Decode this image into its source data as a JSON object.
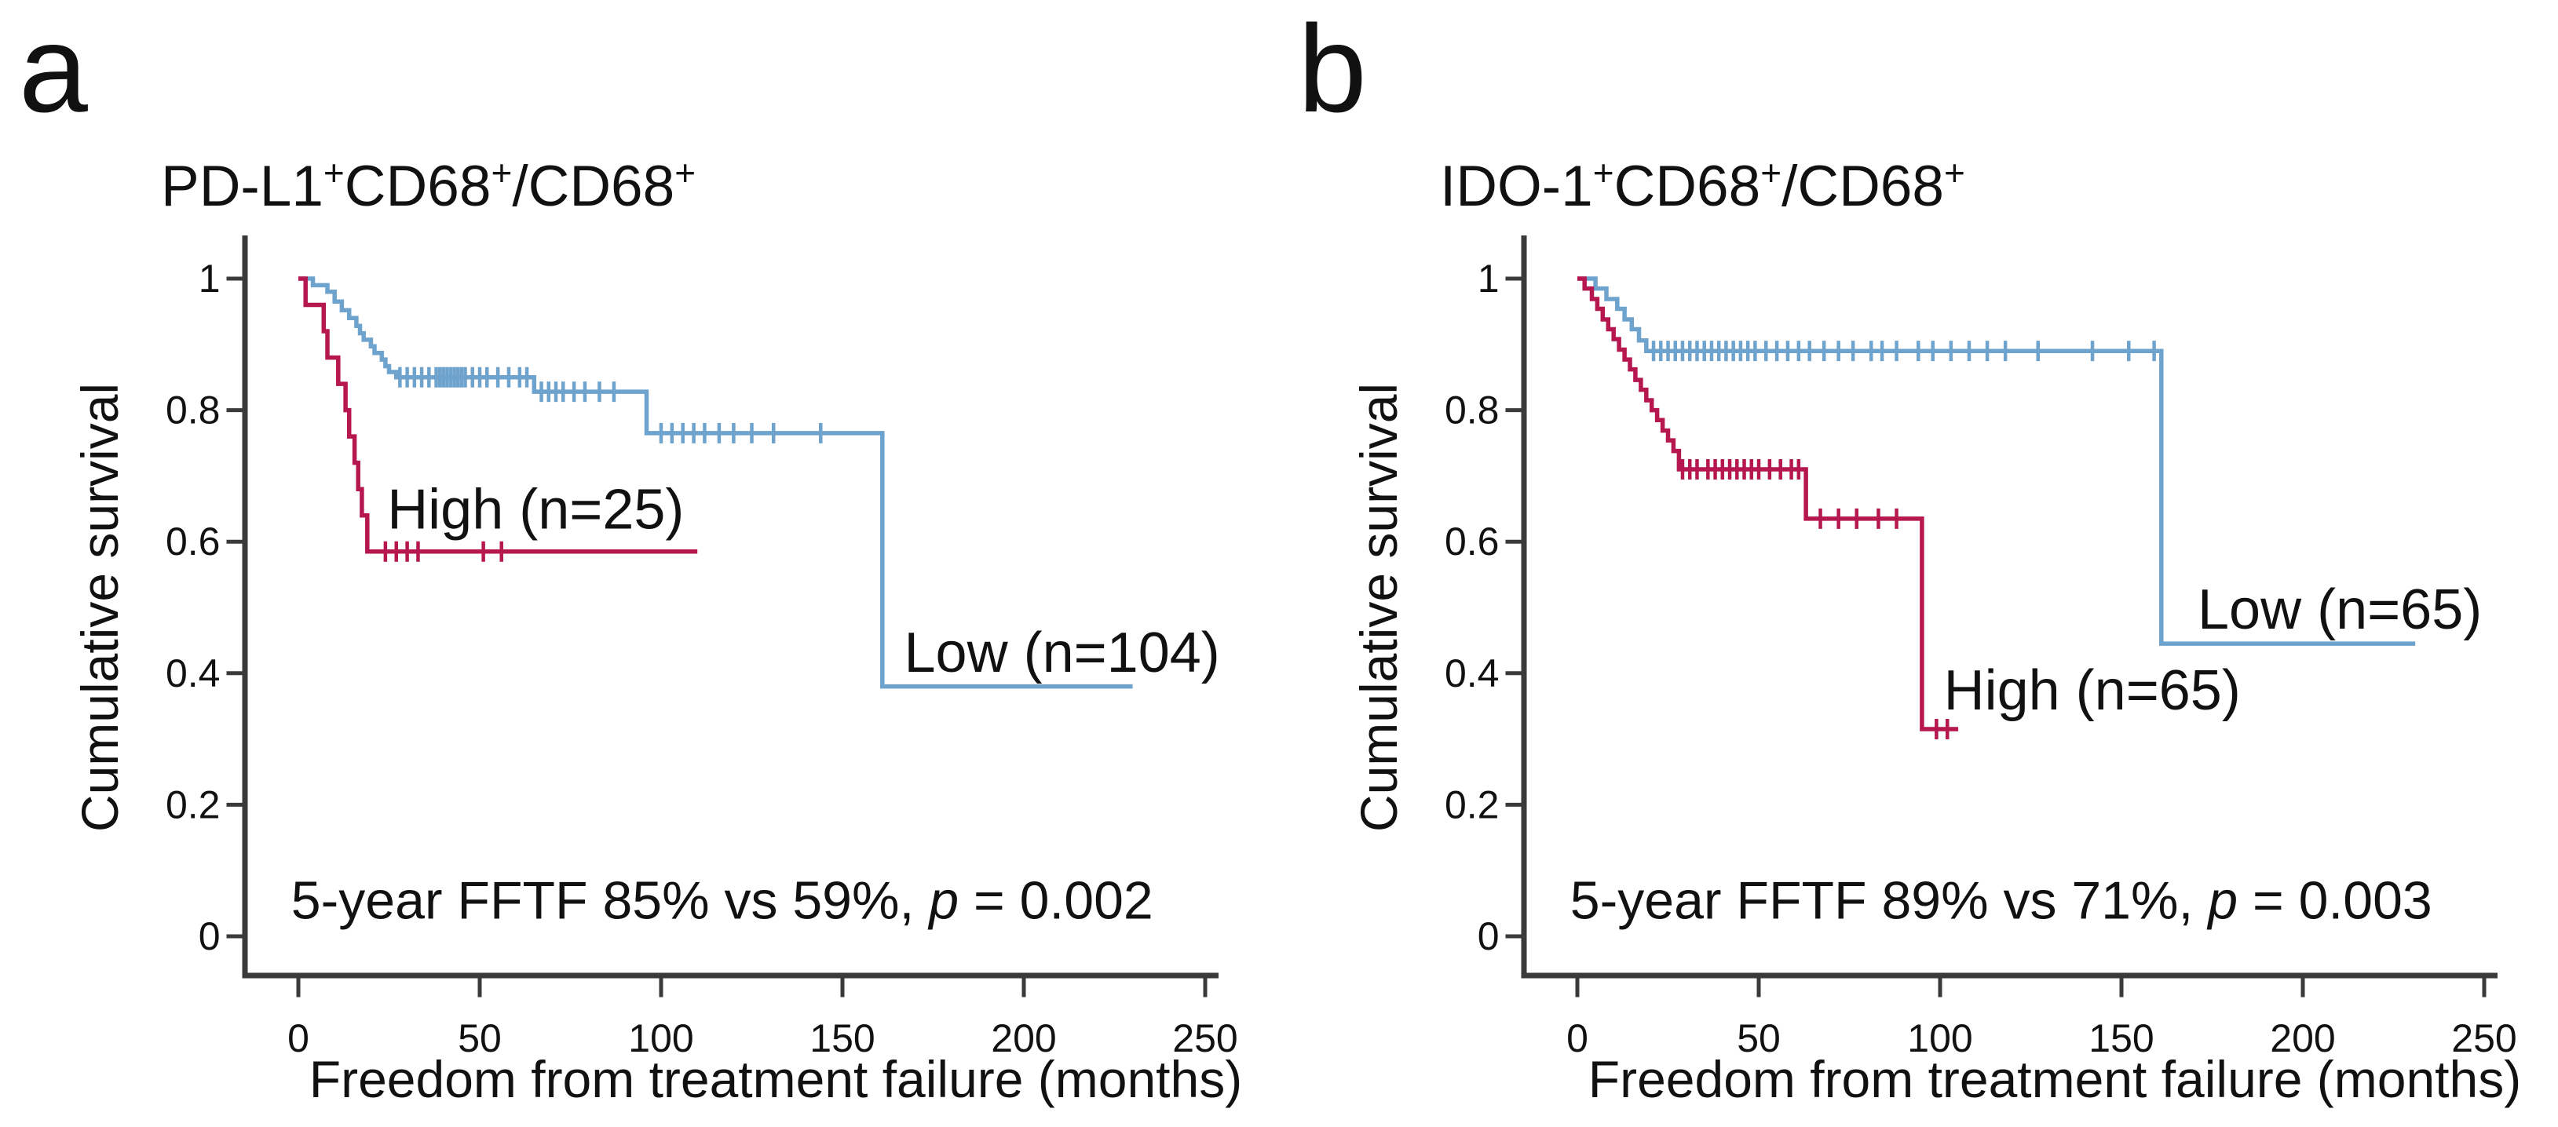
{
  "figure": {
    "background": "#ffffff",
    "panel_letters": [
      "a",
      "b"
    ]
  },
  "palette": {
    "low_blue": "#6ea3cd",
    "high_red": "#b5174e",
    "axis": "#3a3a3a",
    "text": "#111111"
  },
  "chart_data": [
    {
      "type": "line",
      "subtype": "kaplan_meier_step",
      "panel_letter": "a",
      "title": "PD-L1+CD68+/CD68+",
      "title_segments": [
        [
          "PD-L1",
          false
        ],
        [
          "+",
          true
        ],
        [
          "CD68",
          false
        ],
        [
          "+",
          true
        ],
        [
          "/CD68",
          false
        ],
        [
          "+",
          true
        ]
      ],
      "xlabel": "Freedom from treatment failure (months)",
      "ylabel": "Cumulative survival",
      "x_ticks": [
        0,
        50,
        100,
        150,
        200,
        250
      ],
      "y_ticks": [
        [
          "1",
          1.0
        ],
        [
          "0.8",
          0.8
        ],
        [
          "0.6",
          0.6
        ],
        [
          "0.4",
          0.4
        ],
        [
          "0.2",
          0.2
        ],
        [
          "0",
          0.0
        ]
      ],
      "xlim": [
        0,
        254
      ],
      "ylim": [
        0,
        1.05
      ],
      "grid": false,
      "legend_position": "inline-labels",
      "annotation": "5-year FFTF 85% vs 59%, p = 0.002",
      "annotation_segments": [
        [
          "5-year FFTF 85% vs 59%, ",
          "normal"
        ],
        [
          "p",
          "italic"
        ],
        [
          " = 0.002",
          "normal"
        ]
      ],
      "annotation_t": -2,
      "annotation_v": 0.027,
      "series": [
        {
          "id": "low",
          "name": "Low",
          "n": 104,
          "color_key": "low_blue",
          "label_text": "Low (n=104)",
          "label_t": 167,
          "label_v": 0.402,
          "points": [
            [
              0,
              1.0
            ],
            [
              4,
              0.99
            ],
            [
              8,
              0.98
            ],
            [
              10,
              0.965
            ],
            [
              12,
              0.952
            ],
            [
              14,
              0.94
            ],
            [
              16,
              0.928
            ],
            [
              17,
              0.917
            ],
            [
              18,
              0.907
            ],
            [
              20,
              0.897
            ],
            [
              21,
              0.887
            ],
            [
              23,
              0.877
            ],
            [
              24,
              0.867
            ],
            [
              25,
              0.858
            ],
            [
              27,
              0.85
            ],
            [
              65,
              0.828
            ],
            [
              96,
              0.765
            ],
            [
              161,
              0.38
            ]
          ],
          "end_t": 230,
          "censors": [
            [
              28,
              0.85
            ],
            [
              30,
              0.85
            ],
            [
              32,
              0.85
            ],
            [
              34,
              0.85
            ],
            [
              36,
              0.85
            ],
            [
              38,
              0.85
            ],
            [
              39,
              0.85
            ],
            [
              40,
              0.85
            ],
            [
              41,
              0.85
            ],
            [
              42,
              0.85
            ],
            [
              43,
              0.85
            ],
            [
              44,
              0.85
            ],
            [
              45,
              0.85
            ],
            [
              46,
              0.85
            ],
            [
              48,
              0.85
            ],
            [
              50,
              0.85
            ],
            [
              52,
              0.85
            ],
            [
              55,
              0.85
            ],
            [
              58,
              0.85
            ],
            [
              61,
              0.85
            ],
            [
              63,
              0.85
            ],
            [
              67,
              0.828
            ],
            [
              69,
              0.828
            ],
            [
              71,
              0.828
            ],
            [
              73,
              0.828
            ],
            [
              76,
              0.828
            ],
            [
              79,
              0.828
            ],
            [
              83,
              0.828
            ],
            [
              87,
              0.828
            ],
            [
              100,
              0.765
            ],
            [
              103,
              0.765
            ],
            [
              106,
              0.765
            ],
            [
              109,
              0.765
            ],
            [
              112,
              0.765
            ],
            [
              116,
              0.765
            ],
            [
              120,
              0.765
            ],
            [
              125,
              0.765
            ],
            [
              131,
              0.765
            ],
            [
              144,
              0.765
            ]
          ]
        },
        {
          "id": "high",
          "name": "High",
          "n": 25,
          "color_key": "high_red",
          "label_text": "High (n=25)",
          "label_t": 24.5,
          "label_v": 0.62,
          "points": [
            [
              0,
              1.0
            ],
            [
              2,
              0.96
            ],
            [
              7,
              0.92
            ],
            [
              8,
              0.88
            ],
            [
              11,
              0.84
            ],
            [
              13,
              0.8
            ],
            [
              14,
              0.76
            ],
            [
              15.5,
              0.72
            ],
            [
              16.5,
              0.68
            ],
            [
              17.5,
              0.64
            ],
            [
              19,
              0.585
            ]
          ],
          "end_t": 110,
          "censors": [
            [
              24,
              0.585
            ],
            [
              27,
              0.585
            ],
            [
              30,
              0.585
            ],
            [
              33,
              0.585
            ],
            [
              51,
              0.585
            ],
            [
              56,
              0.585
            ]
          ]
        }
      ]
    },
    {
      "type": "line",
      "subtype": "kaplan_meier_step",
      "panel_letter": "b",
      "title": "IDO-1+CD68+/CD68+",
      "title_segments": [
        [
          "IDO-1",
          false
        ],
        [
          "+",
          true
        ],
        [
          "CD68",
          false
        ],
        [
          "+",
          true
        ],
        [
          "/CD68",
          false
        ],
        [
          "+",
          true
        ]
      ],
      "xlabel": "Freedom from treatment failure (months)",
      "ylabel": "Cumulative survival",
      "x_ticks": [
        0,
        50,
        100,
        150,
        200,
        250
      ],
      "y_ticks": [
        [
          "1",
          1.0
        ],
        [
          "0.8",
          0.8
        ],
        [
          "0.6",
          0.6
        ],
        [
          "0.4",
          0.4
        ],
        [
          "0.2",
          0.2
        ],
        [
          "0",
          0.0
        ]
      ],
      "xlim": [
        0,
        254
      ],
      "ylim": [
        0,
        1.05
      ],
      "grid": false,
      "legend_position": "inline-labels",
      "annotation": "5-year FFTF 89% vs 71%, p = 0.003",
      "annotation_segments": [
        [
          "5-year FFTF 89% vs 71%, ",
          "normal"
        ],
        [
          "p",
          "italic"
        ],
        [
          " = 0.003",
          "normal"
        ]
      ],
      "annotation_t": -2,
      "annotation_v": 0.027,
      "series": [
        {
          "id": "low",
          "name": "Low",
          "n": 65,
          "color_key": "low_blue",
          "label_text": "Low (n=65)",
          "label_t": 171,
          "label_v": 0.468,
          "points": [
            [
              0,
              1.0
            ],
            [
              5,
              0.985
            ],
            [
              8,
              0.969
            ],
            [
              11,
              0.954
            ],
            [
              13,
              0.938
            ],
            [
              15,
              0.923
            ],
            [
              17,
              0.906
            ],
            [
              19,
              0.89
            ],
            [
              161,
              0.445
            ]
          ],
          "end_t": 231,
          "censors": [
            [
              21,
              0.89
            ],
            [
              23,
              0.89
            ],
            [
              25,
              0.89
            ],
            [
              27,
              0.89
            ],
            [
              29,
              0.89
            ],
            [
              31,
              0.89
            ],
            [
              33,
              0.89
            ],
            [
              35,
              0.89
            ],
            [
              37,
              0.89
            ],
            [
              39,
              0.89
            ],
            [
              41,
              0.89
            ],
            [
              43,
              0.89
            ],
            [
              45,
              0.89
            ],
            [
              47,
              0.89
            ],
            [
              49,
              0.89
            ],
            [
              52,
              0.89
            ],
            [
              55,
              0.89
            ],
            [
              58,
              0.89
            ],
            [
              61,
              0.89
            ],
            [
              64,
              0.89
            ],
            [
              68,
              0.89
            ],
            [
              72,
              0.89
            ],
            [
              76,
              0.89
            ],
            [
              81,
              0.89
            ],
            [
              84,
              0.89
            ],
            [
              88,
              0.89
            ],
            [
              94,
              0.89
            ],
            [
              98,
              0.89
            ],
            [
              103,
              0.89
            ],
            [
              108,
              0.89
            ],
            [
              113,
              0.89
            ],
            [
              118,
              0.89
            ],
            [
              127,
              0.89
            ],
            [
              142,
              0.89
            ],
            [
              152,
              0.89
            ],
            [
              159,
              0.89
            ]
          ]
        },
        {
          "id": "high",
          "name": "High",
          "n": 65,
          "color_key": "high_red",
          "label_text": "High (n=65)",
          "label_t": 101,
          "label_v": 0.345,
          "points": [
            [
              0,
              1.0
            ],
            [
              2,
              0.985
            ],
            [
              4,
              0.969
            ],
            [
              5.5,
              0.954
            ],
            [
              7,
              0.938
            ],
            [
              8.5,
              0.923
            ],
            [
              10,
              0.908
            ],
            [
              11.5,
              0.892
            ],
            [
              13,
              0.877
            ],
            [
              14.5,
              0.862
            ],
            [
              16,
              0.846
            ],
            [
              17.5,
              0.831
            ],
            [
              19,
              0.815
            ],
            [
              20.5,
              0.8
            ],
            [
              22,
              0.785
            ],
            [
              23.5,
              0.769
            ],
            [
              25,
              0.754
            ],
            [
              26.5,
              0.738
            ],
            [
              28,
              0.71
            ],
            [
              63,
              0.635
            ],
            [
              95,
              0.315
            ]
          ],
          "end_t": 105,
          "censors": [
            [
              29,
              0.71
            ],
            [
              31,
              0.71
            ],
            [
              33,
              0.71
            ],
            [
              36,
              0.71
            ],
            [
              38,
              0.71
            ],
            [
              40,
              0.71
            ],
            [
              42,
              0.71
            ],
            [
              44,
              0.71
            ],
            [
              46,
              0.71
            ],
            [
              48,
              0.71
            ],
            [
              50,
              0.71
            ],
            [
              53,
              0.71
            ],
            [
              56,
              0.71
            ],
            [
              59,
              0.71
            ],
            [
              61,
              0.71
            ],
            [
              67,
              0.635
            ],
            [
              72,
              0.635
            ],
            [
              77,
              0.635
            ],
            [
              83,
              0.635
            ],
            [
              88,
              0.635
            ],
            [
              99,
              0.315
            ],
            [
              102,
              0.315
            ]
          ]
        }
      ]
    }
  ]
}
